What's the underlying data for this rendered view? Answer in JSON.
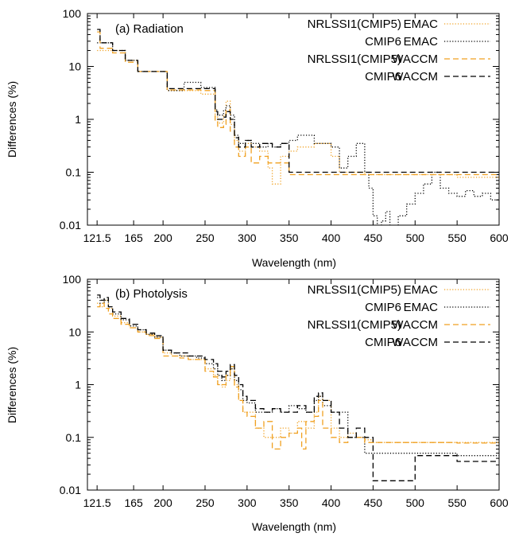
{
  "chart_data": [
    {
      "type": "line",
      "title": "(a) Radiation",
      "xlabel": "Wavelength (nm)",
      "ylabel": "Differences (%)",
      "xlim": [
        110,
        600
      ],
      "ylim": [
        0.01,
        100
      ],
      "yscale": "log",
      "xticks": [
        121.5,
        165,
        200,
        250,
        300,
        350,
        400,
        450,
        500,
        550,
        600
      ],
      "xtick_labels": [
        "121.5",
        "165",
        "200",
        "250",
        "300",
        "350",
        "400",
        "450",
        "500",
        "550",
        "600"
      ],
      "yticks": [
        0.01,
        0.1,
        1,
        10,
        100
      ],
      "ytick_labels": [
        "0.01",
        "0.1",
        "1",
        "10",
        "100"
      ],
      "legend_position": "top-right",
      "series": [
        {
          "name": "NRLSSI1(CMIP5)",
          "model": "EMAC",
          "color": "#f0a020",
          "dash": "dotted",
          "x": [
            121.5,
            125,
            140,
            155,
            170,
            190,
            205,
            225,
            245,
            262,
            265,
            272,
            275,
            280,
            285,
            290,
            298,
            305,
            315,
            325,
            330,
            340,
            350,
            360,
            380,
            400,
            410,
            420,
            440,
            450,
            500,
            550,
            600
          ],
          "y": [
            20,
            20,
            20,
            13,
            8,
            8,
            3.5,
            3.5,
            3,
            1.1,
            0.85,
            1.2,
            2.2,
            0.8,
            0.4,
            0.25,
            0.35,
            0.3,
            0.25,
            0.12,
            0.06,
            0.2,
            0.25,
            0.3,
            0.35,
            0.2,
            0.1,
            0.1,
            0.09,
            0.09,
            0.09,
            0.08,
            0.08
          ]
        },
        {
          "name": "CMIP6",
          "model": "EMAC",
          "color": "#000000",
          "dash": "dotted",
          "x": [
            121.5,
            125,
            140,
            155,
            170,
            190,
            205,
            225,
            245,
            262,
            265,
            272,
            275,
            280,
            285,
            290,
            298,
            305,
            315,
            325,
            330,
            340,
            350,
            360,
            380,
            400,
            410,
            420,
            430,
            440,
            445,
            450,
            455,
            460,
            465,
            470,
            480,
            490,
            500,
            510,
            520,
            530,
            540,
            550,
            560,
            570,
            580,
            590,
            600
          ],
          "y": [
            28,
            28,
            20,
            13,
            8,
            8,
            3.5,
            5,
            4,
            1.5,
            1.2,
            1.5,
            1.8,
            1.2,
            0.5,
            0.35,
            0.4,
            0.35,
            0.3,
            0.35,
            0.3,
            0.35,
            0.4,
            0.5,
            0.35,
            0.3,
            0.12,
            0.2,
            0.35,
            0.1,
            0.05,
            0.015,
            0.008,
            0.012,
            0.018,
            0.005,
            0.015,
            0.025,
            0.04,
            0.06,
            0.1,
            0.05,
            0.04,
            0.035,
            0.045,
            0.035,
            0.04,
            0.03,
            0.03
          ]
        },
        {
          "name": "NRLSSI1(CMIP5)",
          "model": "WACCM",
          "color": "#f0a020",
          "dash": "dashed",
          "x": [
            121.5,
            125,
            140,
            155,
            170,
            190,
            205,
            225,
            245,
            262,
            265,
            272,
            275,
            280,
            285,
            290,
            298,
            305,
            315,
            325,
            330,
            340,
            350,
            400,
            450,
            500,
            550,
            600
          ],
          "y": [
            45,
            22,
            18,
            12,
            8,
            8,
            3.6,
            3.6,
            3.5,
            0.9,
            0.7,
            0.8,
            1.5,
            0.6,
            0.3,
            0.2,
            0.3,
            0.15,
            0.2,
            0.15,
            0.15,
            0.15,
            0.09,
            0.09,
            0.09,
            0.09,
            0.09,
            0.09
          ]
        },
        {
          "name": "CMIP6",
          "model": "WACCM",
          "color": "#000000",
          "dash": "dashed",
          "x": [
            121.5,
            125,
            140,
            155,
            170,
            190,
            205,
            225,
            245,
            262,
            265,
            272,
            275,
            280,
            285,
            290,
            298,
            305,
            315,
            325,
            330,
            340,
            350,
            400,
            450,
            500,
            550,
            600
          ],
          "y": [
            50,
            28,
            20,
            13,
            8,
            8,
            3.8,
            3.8,
            3.8,
            1.4,
            1.0,
            1.1,
            1.4,
            1.0,
            0.45,
            0.3,
            0.4,
            0.3,
            0.35,
            0.35,
            0.3,
            0.35,
            0.1,
            0.1,
            0.1,
            0.1,
            0.1,
            0.1
          ]
        }
      ]
    },
    {
      "type": "line",
      "title": "(b) Photolysis",
      "xlabel": "Wavelength (nm)",
      "ylabel": "Differences (%)",
      "xlim": [
        110,
        600
      ],
      "ylim": [
        0.01,
        100
      ],
      "yscale": "log",
      "xticks": [
        121.5,
        165,
        200,
        250,
        300,
        350,
        400,
        450,
        500,
        550,
        600
      ],
      "xtick_labels": [
        "121.5",
        "165",
        "200",
        "250",
        "300",
        "350",
        "400",
        "450",
        "500",
        "550",
        "600"
      ],
      "yticks": [
        0.01,
        0.1,
        1,
        10,
        100
      ],
      "ytick_labels": [
        "0.01",
        "0.1",
        "1",
        "10",
        "100"
      ],
      "legend_position": "top-right",
      "series": [
        {
          "name": "NRLSSI1(CMIP5)",
          "model": "EMAC",
          "color": "#f0a020",
          "dash": "dotted",
          "x": [
            121.5,
            125,
            130,
            135,
            140,
            150,
            160,
            170,
            180,
            190,
            200,
            210,
            220,
            230,
            240,
            250,
            260,
            265,
            270,
            275,
            280,
            285,
            290,
            295,
            300,
            310,
            320,
            330,
            340,
            350,
            360,
            370,
            380,
            385,
            390,
            400,
            410,
            420,
            430,
            440,
            450,
            500,
            550,
            600
          ],
          "y": [
            35,
            30,
            40,
            28,
            20,
            15,
            12,
            10,
            9,
            8,
            4,
            3.5,
            3.5,
            3,
            3,
            2,
            1.5,
            1.0,
            0.9,
            1.2,
            2.0,
            1.0,
            0.5,
            0.3,
            0.3,
            0.15,
            0.1,
            0.1,
            0.15,
            0.12,
            0.2,
            0.15,
            0.3,
            0.6,
            0.5,
            0.15,
            0.1,
            0.12,
            0.1,
            0.09,
            0.08,
            0.08,
            0.08,
            0.075
          ]
        },
        {
          "name": "CMIP6",
          "model": "EMAC",
          "color": "#000000",
          "dash": "dotted",
          "x": [
            121.5,
            125,
            130,
            135,
            140,
            150,
            160,
            170,
            180,
            190,
            200,
            210,
            220,
            230,
            240,
            250,
            260,
            265,
            270,
            275,
            280,
            285,
            290,
            295,
            300,
            310,
            320,
            330,
            340,
            350,
            360,
            370,
            380,
            385,
            390,
            400,
            410,
            420,
            440,
            450,
            500,
            550,
            600
          ],
          "y": [
            45,
            35,
            40,
            30,
            22,
            17,
            13,
            11,
            9,
            8,
            4.5,
            4,
            3.5,
            3.5,
            3.2,
            2.5,
            2.0,
            1.5,
            1.2,
            1.5,
            2.0,
            1.2,
            0.8,
            0.5,
            0.45,
            0.3,
            0.3,
            0.35,
            0.3,
            0.4,
            0.35,
            0.3,
            0.5,
            0.6,
            0.4,
            0.3,
            0.3,
            0.1,
            0.05,
            0.05,
            0.05,
            0.045,
            0.045
          ]
        },
        {
          "name": "NRLSSI1(CMIP5)",
          "model": "WACCM",
          "color": "#f0a020",
          "dash": "dashed",
          "x": [
            121.5,
            125,
            130,
            135,
            140,
            150,
            160,
            170,
            180,
            190,
            200,
            210,
            220,
            230,
            240,
            250,
            260,
            265,
            270,
            275,
            280,
            285,
            290,
            295,
            300,
            310,
            320,
            330,
            340,
            350,
            360,
            365,
            370,
            380,
            385,
            390,
            400,
            410,
            420,
            440,
            450,
            500,
            550,
            600
          ],
          "y": [
            30,
            35,
            28,
            22,
            18,
            14,
            12,
            10,
            8.5,
            7.5,
            3.5,
            3.5,
            3.2,
            3.0,
            3.0,
            1.8,
            1.4,
            1.0,
            1.0,
            1.5,
            2.2,
            0.9,
            0.5,
            0.3,
            0.25,
            0.15,
            0.2,
            0.06,
            0.1,
            0.12,
            0.15,
            0.06,
            0.2,
            0.25,
            0.5,
            0.15,
            0.1,
            0.08,
            0.1,
            0.08,
            0.08,
            0.08,
            0.078,
            0.078
          ]
        },
        {
          "name": "CMIP6",
          "model": "WACCM",
          "color": "#000000",
          "dash": "dashed",
          "x": [
            121.5,
            125,
            130,
            135,
            140,
            150,
            160,
            170,
            180,
            190,
            200,
            210,
            220,
            230,
            240,
            250,
            260,
            265,
            270,
            275,
            280,
            285,
            290,
            295,
            300,
            310,
            320,
            330,
            340,
            350,
            360,
            370,
            380,
            385,
            390,
            400,
            410,
            420,
            430,
            440,
            450,
            500,
            550,
            600
          ],
          "y": [
            50,
            40,
            45,
            30,
            24,
            18,
            14,
            11,
            9.5,
            8.5,
            4.5,
            4,
            4,
            3.5,
            3.5,
            3,
            2.5,
            1.8,
            1.4,
            1.8,
            2.4,
            1.5,
            1.0,
            0.6,
            0.5,
            0.35,
            0.3,
            0.35,
            0.3,
            0.3,
            0.4,
            0.3,
            0.6,
            0.7,
            0.5,
            0.3,
            0.15,
            0.1,
            0.15,
            0.1,
            0.015,
            0.045,
            0.035,
            0.035
          ]
        }
      ]
    }
  ]
}
